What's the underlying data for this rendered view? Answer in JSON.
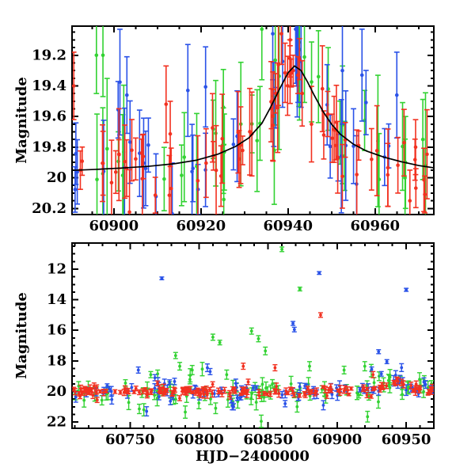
{
  "figure": {
    "background": "#ffffff",
    "palette": {
      "red": "#f23120",
      "green": "#32d232",
      "blue": "#2a52e8",
      "axis": "#000000",
      "curve": "#000000"
    }
  },
  "chart_data": [
    {
      "type": "scatter",
      "panel": "top",
      "title": "",
      "xlabel": "",
      "ylabel": "Magnitude",
      "xlim": [
        60890.4,
        60973.5
      ],
      "ylim": [
        19.01,
        20.24
      ],
      "y_inverted_magnitude_axis": true,
      "xticks": [
        60900,
        60920,
        60940,
        60960
      ],
      "xtick_labels": [
        "60900",
        "60920",
        "60940",
        "60960"
      ],
      "yticks": [
        19.2,
        19.4,
        19.6,
        19.8,
        20.0,
        20.2
      ],
      "ytick_labels": [
        "19.2",
        "19.4",
        "19.6",
        "19.8",
        "20",
        "20.2"
      ],
      "minor_x": 5,
      "minor_y": 0.05,
      "grid": false,
      "legend": false,
      "model_curve": [
        [
          60890,
          19.952
        ],
        [
          60896,
          19.945
        ],
        [
          60902,
          19.936
        ],
        [
          60908,
          19.925
        ],
        [
          60914,
          19.908
        ],
        [
          60919,
          19.885
        ],
        [
          60924,
          19.845
        ],
        [
          60928,
          19.795
        ],
        [
          60931,
          19.74
        ],
        [
          60934,
          19.645
        ],
        [
          60936,
          19.54
        ],
        [
          60938,
          19.425
        ],
        [
          60940,
          19.315
        ],
        [
          60941.5,
          19.27
        ],
        [
          60943,
          19.3
        ],
        [
          60944.5,
          19.375
        ],
        [
          60946,
          19.46
        ],
        [
          60948,
          19.565
        ],
        [
          60950,
          19.65
        ],
        [
          60952,
          19.715
        ],
        [
          60955,
          19.78
        ],
        [
          60958,
          19.825
        ],
        [
          60962,
          19.865
        ],
        [
          60966,
          19.895
        ],
        [
          60970,
          19.92
        ],
        [
          60973.5,
          19.935
        ]
      ],
      "series": [
        {
          "name": "green",
          "color": "green",
          "gen": {
            "n": 38,
            "seed": 11,
            "sigma": 0.17,
            "err": [
              0.16,
              0.48
            ],
            "use_model": true,
            "base": 19.95,
            "tail": {
              "p": 0.05,
              "lo": 0.3,
              "hi": 0.6
            }
          },
          "points": [
            [
              60896,
              19.2,
              0.25
            ],
            [
              60897.5,
              19.2,
              0.27
            ],
            [
              60934,
              19.03,
              0.33
            ],
            [
              60947,
              19.34,
              0.3
            ],
            [
              60967,
              19.9,
              0.3
            ]
          ]
        },
        {
          "name": "blue",
          "color": "blue",
          "gen": {
            "n": 38,
            "seed": 22,
            "sigma": 0.15,
            "err": [
              0.13,
              0.4
            ],
            "use_model": true,
            "base": 19.95,
            "tail": {
              "p": 0.04,
              "lo": 0.25,
              "hi": 0.5
            }
          },
          "points": [
            [
              60903,
              19.46,
              0.25
            ],
            [
              60917,
              19.43,
              0.3
            ],
            [
              60936.5,
              19.06,
              0.3
            ],
            [
              60943,
              19.24,
              0.3
            ],
            [
              60952.5,
              19.3,
              0.35
            ],
            [
              60957,
              19.33,
              0.3
            ],
            [
              60965,
              19.46,
              0.28
            ]
          ]
        },
        {
          "name": "red",
          "color": "red",
          "gen": {
            "n": 72,
            "seed": 33,
            "sigma": 0.12,
            "err": [
              0.09,
              0.3
            ],
            "use_model": true,
            "base": 19.96,
            "tail": {
              "p": 0.04,
              "lo": 0.2,
              "hi": 0.45
            }
          },
          "points": [
            [
              60890.8,
              19.4,
              0.22
            ],
            [
              60912,
              19.52,
              0.25
            ],
            [
              60938.5,
              19.06,
              0.2
            ],
            [
              60940.5,
              19.1,
              0.22
            ],
            [
              60941.2,
              19.3,
              0.1
            ],
            [
              60942.3,
              19.33,
              0.12
            ],
            [
              60968,
              20.15,
              0.2
            ]
          ]
        }
      ]
    },
    {
      "type": "scatter",
      "panel": "bottom",
      "title": "",
      "xlabel": "HJD−2400000",
      "ylabel": "Magnitude",
      "xlim": [
        60708,
        60970
      ],
      "ylim": [
        10.29,
        22.41
      ],
      "y_inverted_magnitude_axis": true,
      "xticks": [
        60750,
        60800,
        60850,
        60900,
        60950
      ],
      "xtick_labels": [
        "60750",
        "60800",
        "60850",
        "60900",
        "60950"
      ],
      "yticks": [
        12,
        14,
        16,
        18,
        20,
        22
      ],
      "ytick_labels": [
        "12",
        "14",
        "16",
        "18",
        "20",
        "22"
      ],
      "minor_x": 10,
      "minor_y": 0.5,
      "grid": false,
      "legend": false,
      "series": [
        {
          "name": "green",
          "color": "green",
          "gen": {
            "n": 92,
            "seed": 44,
            "sigma": 0.42,
            "err": [
              0.18,
              0.5
            ],
            "use_model": true,
            "base": 20.0,
            "tail": {
              "p": 0.1,
              "lo": 0.5,
              "hi": 1.4
            }
          },
          "points": [
            [
              60765,
              18.9,
              0.2
            ],
            [
              60770,
              18.85,
              0.25
            ],
            [
              60783,
              17.65,
              0.2
            ],
            [
              60786,
              18.35,
              0.25
            ],
            [
              60795,
              18.6,
              0.3
            ],
            [
              60810,
              16.45,
              0.2
            ],
            [
              60815,
              16.8,
              0.15
            ],
            [
              60820,
              18.9,
              0.3
            ],
            [
              60838,
              16.05,
              0.2
            ],
            [
              60843,
              16.55,
              0.2
            ],
            [
              60848,
              17.35,
              0.25
            ],
            [
              60860,
              10.7,
              0.15
            ],
            [
              60873,
              13.3,
              0.12
            ],
            [
              60880,
              18.35,
              0.3
            ],
            [
              60905,
              18.6,
              0.25
            ],
            [
              60920,
              18.35,
              0.3
            ],
            [
              60922,
              21.65,
              0.35
            ],
            [
              60760,
              21.2,
              0.4
            ],
            [
              60790,
              21.35,
              0.4
            ],
            [
              60812,
              21.1,
              0.35
            ],
            [
              60845,
              21.95,
              0.4
            ],
            [
              60871,
              21.0,
              0.35
            ]
          ]
        },
        {
          "name": "blue",
          "color": "blue",
          "gen": {
            "n": 82,
            "seed": 55,
            "sigma": 0.27,
            "err": [
              0.13,
              0.35
            ],
            "use_model": true,
            "base": 20.0,
            "tail": {
              "p": 0.07,
              "lo": 0.4,
              "hi": 1.1
            }
          },
          "points": [
            [
              60773,
              12.6,
              0.09
            ],
            [
              60756,
              18.6,
              0.2
            ],
            [
              60768,
              19.1,
              0.2
            ],
            [
              60806,
              18.45,
              0.25
            ],
            [
              60808,
              18.7,
              0.2
            ],
            [
              60868,
              15.55,
              0.13
            ],
            [
              60869,
              15.95,
              0.15
            ],
            [
              60887,
              12.25,
              0.09
            ],
            [
              60925,
              18.55,
              0.15
            ],
            [
              60930,
              17.4,
              0.13
            ],
            [
              60932,
              18.85,
              0.15
            ],
            [
              60936,
              18.05,
              0.13
            ],
            [
              60950,
              13.35,
              0.1
            ],
            [
              60762,
              21.3,
              0.3
            ],
            [
              60824,
              20.95,
              0.25
            ],
            [
              60890,
              20.9,
              0.3
            ],
            [
              60944,
              19.35,
              0.15
            ]
          ]
        },
        {
          "name": "red",
          "color": "red",
          "gen": {
            "n": 168,
            "seed": 66,
            "sigma": 0.13,
            "err": [
              0.08,
              0.24
            ],
            "use_model": true,
            "base": 19.99,
            "tail": {
              "p": 0.05,
              "lo": 0.2,
              "hi": 0.5
            }
          },
          "points": [
            [
              60888,
              15.0,
              0.15
            ],
            [
              60832,
              18.35,
              0.2
            ],
            [
              60855,
              18.45,
              0.2
            ],
            [
              60926,
              18.9,
              0.2
            ],
            [
              60941,
              19.4,
              0.12
            ],
            [
              60942,
              19.5,
              0.12
            ]
          ]
        }
      ]
    }
  ]
}
